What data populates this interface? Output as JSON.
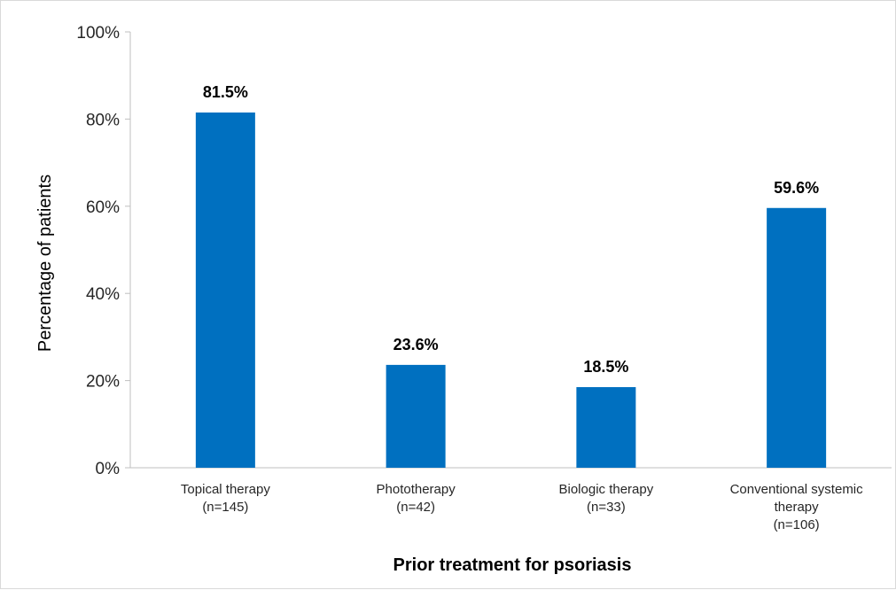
{
  "chart_data": {
    "type": "bar",
    "categories": [
      [
        "Topical therapy",
        "(n=145)"
      ],
      [
        "Phototherapy",
        "(n=42)"
      ],
      [
        "Biologic therapy",
        "(n=33)"
      ],
      [
        "Conventional systemic",
        "therapy",
        "(n=106)"
      ]
    ],
    "values": [
      81.5,
      23.6,
      18.5,
      59.6
    ],
    "data_labels": [
      "81.5%",
      "23.6%",
      "18.5%",
      "59.6%"
    ],
    "title": "",
    "xlabel": "Prior treatment for psoriasis",
    "ylabel": "Percentage of patients",
    "ylim": [
      0,
      100
    ],
    "yticks": [
      0,
      20,
      40,
      60,
      80,
      100
    ],
    "ytick_labels": [
      "0%",
      "20%",
      "40%",
      "60%",
      "80%",
      "100%"
    ],
    "grid": false,
    "legend": "none",
    "bar_color": "#0070C0"
  }
}
